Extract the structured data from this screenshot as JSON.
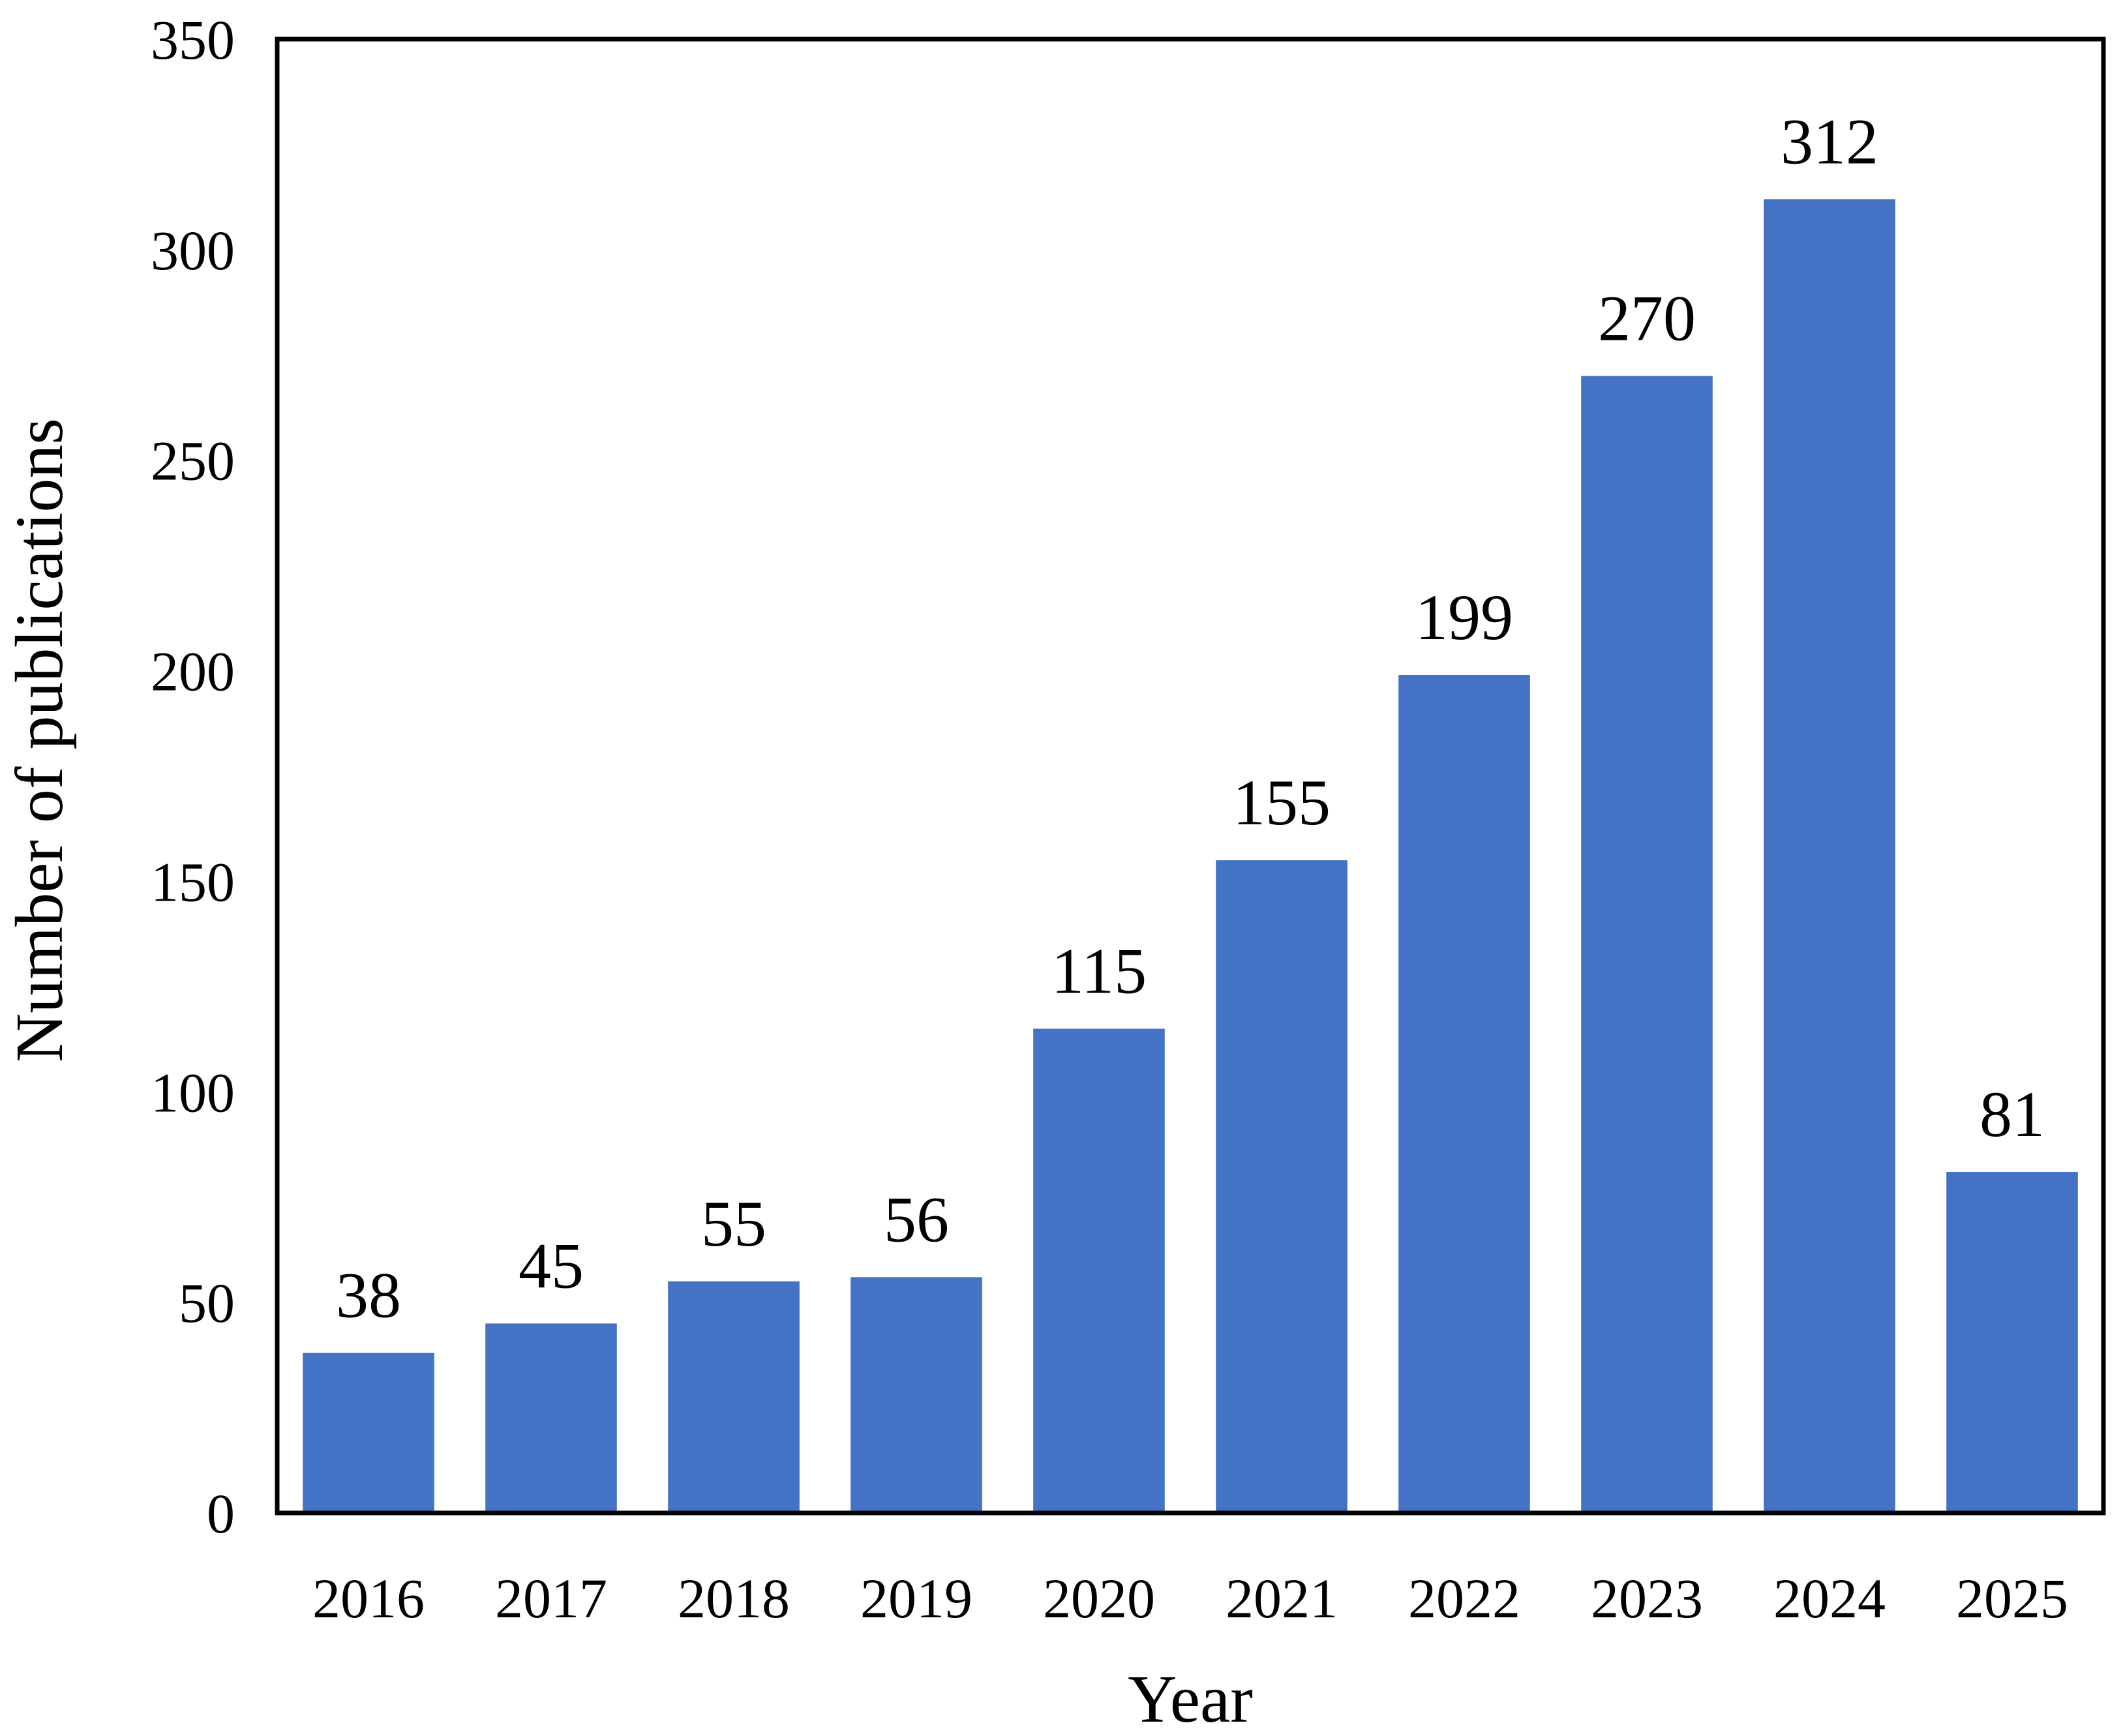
{
  "chart_data": {
    "type": "bar",
    "title": "",
    "xlabel": "Year",
    "ylabel": "Number of publications",
    "categories": [
      "2016",
      "2017",
      "2018",
      "2019",
      "2020",
      "2021",
      "2022",
      "2023",
      "2024",
      "2025"
    ],
    "values": [
      38,
      45,
      55,
      56,
      115,
      155,
      199,
      270,
      312,
      81
    ],
    "ylim": [
      0,
      350
    ],
    "yticks": [
      0,
      50,
      100,
      150,
      200,
      250,
      300,
      350
    ],
    "grid": false,
    "legend": "none",
    "bar_color": "#4472C4"
  }
}
